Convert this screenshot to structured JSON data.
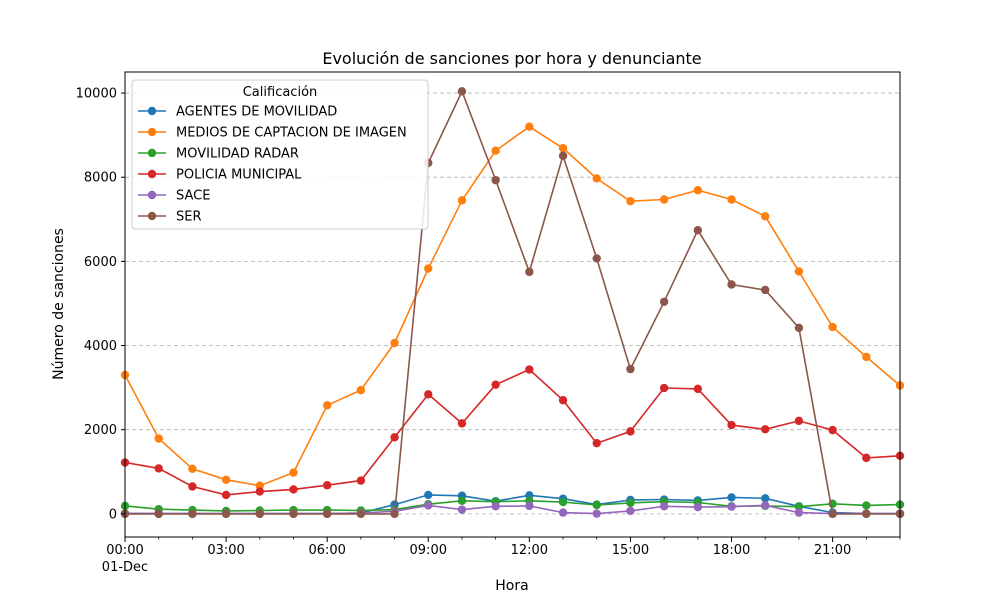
{
  "chart_data": {
    "type": "line",
    "title": "Evolución de sanciones por hora y denunciante",
    "xlabel": "Hora",
    "ylabel": "Número de sanciones",
    "x": [
      "00:00",
      "01:00",
      "02:00",
      "03:00",
      "04:00",
      "05:00",
      "06:00",
      "07:00",
      "08:00",
      "09:00",
      "10:00",
      "11:00",
      "12:00",
      "13:00",
      "14:00",
      "15:00",
      "16:00",
      "17:00",
      "18:00",
      "19:00",
      "20:00",
      "21:00",
      "22:00",
      "23:00"
    ],
    "x_ticks": [
      "00:00",
      "03:00",
      "06:00",
      "09:00",
      "12:00",
      "15:00",
      "18:00",
      "21:00"
    ],
    "x_date_label": "01-Dec",
    "ylim": [
      -550,
      10500
    ],
    "y_ticks": [
      0,
      2000,
      4000,
      6000,
      8000,
      10000
    ],
    "grid": "horizontal dashed",
    "legend": {
      "title": "Calificación",
      "placement": "upper-left"
    },
    "series": [
      {
        "name": "AGENTES DE MOVILIDAD",
        "color": "#1f77b4",
        "values": [
          10,
          5,
          5,
          5,
          5,
          5,
          5,
          20,
          220,
          450,
          430,
          300,
          440,
          360,
          220,
          330,
          340,
          320,
          390,
          370,
          180,
          30,
          5,
          5
        ]
      },
      {
        "name": "MEDIOS DE CAPTACION DE IMAGEN",
        "color": "#ff7f0e",
        "values": [
          3300,
          1790,
          1070,
          810,
          670,
          980,
          2580,
          2940,
          4060,
          5830,
          7450,
          8630,
          9200,
          8690,
          7970,
          7430,
          7470,
          7690,
          7470,
          7070,
          5760,
          4440,
          3730,
          3050
        ]
      },
      {
        "name": "MOVILIDAD RADAR",
        "color": "#2ca02c",
        "values": [
          190,
          110,
          90,
          70,
          80,
          90,
          90,
          80,
          100,
          230,
          310,
          290,
          310,
          280,
          210,
          260,
          290,
          270,
          180,
          190,
          170,
          240,
          200,
          220
        ]
      },
      {
        "name": "POLICIA MUNICIPAL",
        "color": "#d62728",
        "values": [
          1220,
          1080,
          650,
          450,
          530,
          580,
          680,
          790,
          1820,
          2840,
          2150,
          3070,
          3430,
          2700,
          1680,
          1960,
          2990,
          2970,
          2110,
          2010,
          2210,
          1990,
          1330,
          1380
        ]
      },
      {
        "name": "SACE",
        "color": "#9467bd",
        "values": [
          5,
          5,
          5,
          5,
          5,
          5,
          5,
          20,
          60,
          200,
          100,
          180,
          190,
          30,
          5,
          70,
          180,
          160,
          170,
          200,
          30,
          5,
          5,
          5
        ]
      },
      {
        "name": "SER",
        "color": "#8c564b",
        "values": [
          0,
          0,
          0,
          0,
          0,
          0,
          0,
          0,
          0,
          8340,
          10040,
          7930,
          5750,
          8510,
          6070,
          3440,
          5040,
          6740,
          5450,
          5320,
          4420,
          0,
          0,
          0
        ]
      }
    ]
  }
}
